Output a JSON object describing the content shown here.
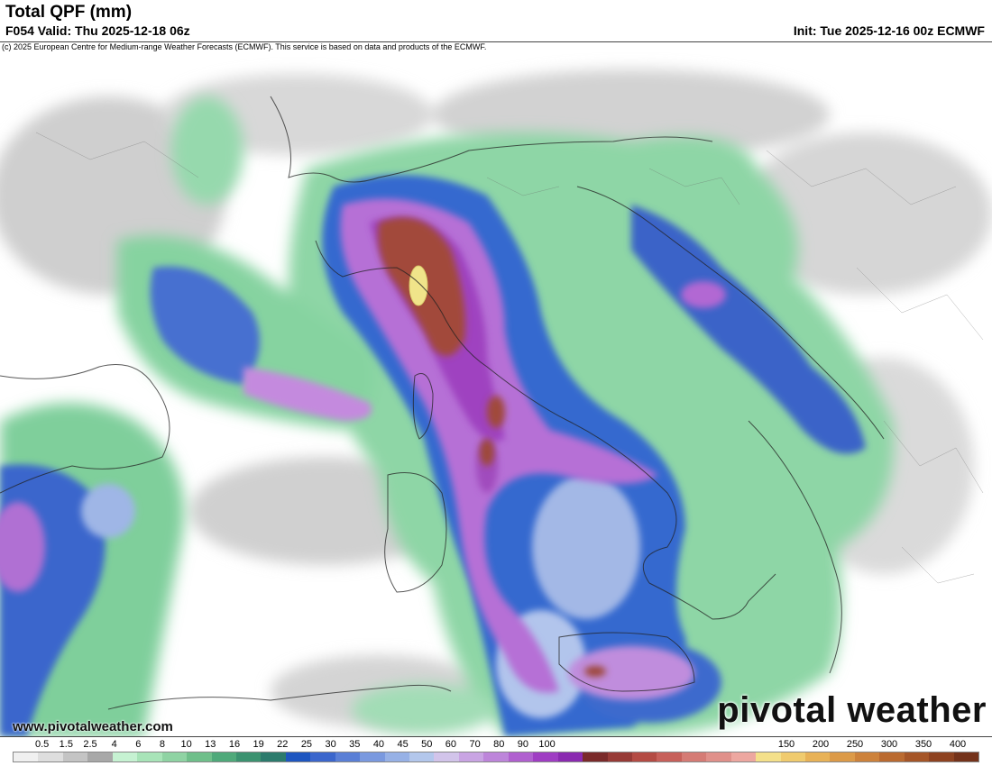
{
  "header": {
    "title": "Total QPF (mm)",
    "valid": "F054 Valid: Thu 2025-12-18 06z",
    "init": "Init: Tue 2025-12-16 00z ECMWF"
  },
  "copyright": "(c) 2025 European Centre for Medium-range Weather Forecasts (ECMWF). This service is based on data and products of the ECMWF.",
  "branding": {
    "logo_text": "pivotal weather",
    "website": "www.pivotalweather.com"
  },
  "colorbar": {
    "labels": [
      "0.5",
      "1.5",
      "2.5",
      "4",
      "6",
      "8",
      "10",
      "13",
      "16",
      "19",
      "22",
      "25",
      "30",
      "35",
      "40",
      "45",
      "50",
      "60",
      "70",
      "80",
      "90",
      "100",
      "150",
      "200",
      "250",
      "300",
      "350",
      "400"
    ],
    "colors": [
      "#f0f0f0",
      "#dedede",
      "#c4c4c4",
      "#a8a8a8",
      "#c6f2d2",
      "#a8e4b8",
      "#8fd3a3",
      "#6fbf8a",
      "#4fa97a",
      "#3b9270",
      "#2c7b6d",
      "#1e56c0",
      "#3b66cc",
      "#5a7fd6",
      "#7a99df",
      "#97b1e6",
      "#b3c7ec",
      "#d2c4ea",
      "#c9a4e3",
      "#bd85da",
      "#b060cf",
      "#9f3dc3",
      "#8a2ab0",
      "#7a2a2a",
      "#973a36",
      "#b44b44",
      "#c7605a",
      "#d57b75",
      "#e0908a",
      "#eda7a0",
      "#f4e08a",
      "#f0cb6e",
      "#e8b257",
      "#dc9a48",
      "#cd823b",
      "#ba6a30",
      "#a55527",
      "#8e4220",
      "#74321a"
    ]
  },
  "map_features": {
    "base_color": "#ffffff",
    "gray_rain_color": "#c8c8c8",
    "light_green_color": "#b4e7c2",
    "green_color": "#6fc08e",
    "blue_color": "#2e5fc9",
    "light_blue_color": "#9fb6e6",
    "purple_color": "#b56fd6",
    "magenta_color": "#a03fbf",
    "brown_color": "#9c4436",
    "yellow_color": "#f0e48a",
    "border_color": "#222222"
  }
}
